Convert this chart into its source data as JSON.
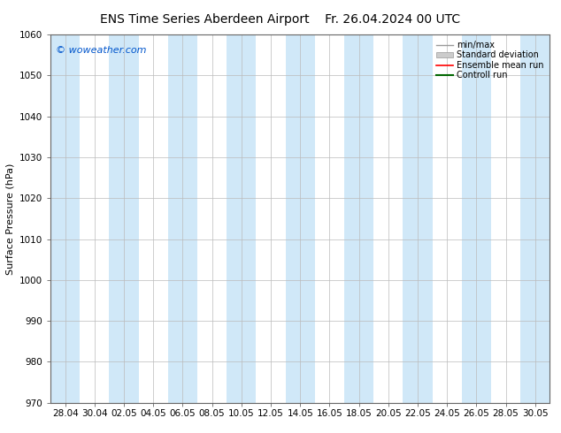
{
  "title": "ENS Time Series Aberdeen Airport",
  "title2": "Fr. 26.04.2024 00 UTC",
  "ylabel": "Surface Pressure (hPa)",
  "watermark": "© woweather.com",
  "ylim": [
    970,
    1060
  ],
  "yticks": [
    970,
    980,
    990,
    1000,
    1010,
    1020,
    1030,
    1040,
    1050,
    1060
  ],
  "x_labels": [
    "28.04",
    "30.04",
    "02.05",
    "04.05",
    "06.05",
    "08.05",
    "10.05",
    "12.05",
    "14.05",
    "16.05",
    "18.05",
    "20.05",
    "22.05",
    "24.05",
    "26.05",
    "28.05",
    "30.05"
  ],
  "bg_color": "#ffffff",
  "plot_bg_color": "#ffffff",
  "band_color": "#d0e8f8",
  "legend_entries": [
    "min/max",
    "Standard deviation",
    "Ensemble mean run",
    "Controll run"
  ],
  "grid_color": "#bbbbbb",
  "title_fontsize": 10,
  "tick_fontsize": 7.5,
  "label_fontsize": 8,
  "watermark_color": "#0055cc",
  "band_indices": [
    0,
    2,
    4,
    6,
    8,
    10,
    12,
    14,
    16
  ]
}
